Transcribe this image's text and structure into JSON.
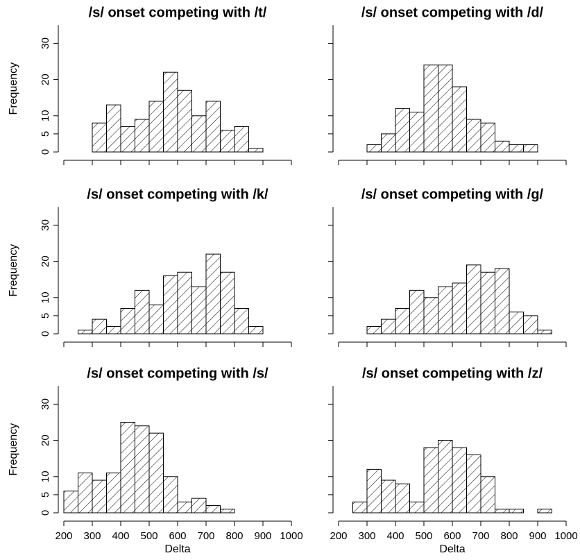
{
  "chart_data": [
    {
      "type": "bar",
      "title": "/s/ onset competing with /t/",
      "xlabel": "",
      "ylabel": "Frequency",
      "bin_width": 50,
      "bin_starts": [
        300,
        350,
        400,
        450,
        500,
        550,
        600,
        650,
        700,
        750,
        800,
        850
      ],
      "values": [
        8,
        13,
        7,
        9,
        14,
        22,
        17,
        10,
        14,
        6,
        7,
        1
      ],
      "xlim": [
        200,
        1000
      ],
      "ylim": [
        0,
        35
      ],
      "x_ticks": [],
      "y_ticks": [
        0,
        5,
        10,
        20,
        30
      ]
    },
    {
      "type": "bar",
      "title": "/s/ onset competing with /d/",
      "xlabel": "",
      "ylabel": "",
      "bin_width": 50,
      "bin_starts": [
        300,
        350,
        400,
        450,
        500,
        550,
        600,
        650,
        700,
        750,
        800,
        850
      ],
      "values": [
        2,
        5,
        12,
        11,
        24,
        24,
        18,
        9,
        8,
        3,
        2,
        2
      ],
      "xlim": [
        200,
        1000
      ],
      "ylim": [
        0,
        35
      ],
      "x_ticks": [],
      "y_ticks": []
    },
    {
      "type": "bar",
      "title": "/s/ onset competing with /k/",
      "xlabel": "",
      "ylabel": "Frequency",
      "bin_width": 50,
      "bin_starts": [
        250,
        300,
        350,
        400,
        450,
        500,
        550,
        600,
        650,
        700,
        750,
        800,
        850
      ],
      "values": [
        1,
        4,
        2,
        7,
        12,
        8,
        16,
        17,
        13,
        22,
        17,
        7,
        2
      ],
      "xlim": [
        200,
        1000
      ],
      "ylim": [
        0,
        35
      ],
      "x_ticks": [],
      "y_ticks": [
        0,
        5,
        10,
        20,
        30
      ]
    },
    {
      "type": "bar",
      "title": "/s/ onset competing with /g/",
      "xlabel": "",
      "ylabel": "",
      "bin_width": 50,
      "bin_starts": [
        300,
        350,
        400,
        450,
        500,
        550,
        600,
        650,
        700,
        750,
        800,
        850,
        900
      ],
      "values": [
        2,
        4,
        7,
        12,
        10,
        13,
        14,
        19,
        17,
        18,
        6,
        5,
        1
      ],
      "xlim": [
        200,
        1000
      ],
      "ylim": [
        0,
        35
      ],
      "x_ticks": [],
      "y_ticks": []
    },
    {
      "type": "bar",
      "title": "/s/ onset competing with /s/",
      "xlabel": "Delta",
      "ylabel": "Frequency",
      "bin_width": 50,
      "bin_starts": [
        200,
        250,
        300,
        350,
        400,
        450,
        500,
        550,
        600,
        650,
        700,
        750
      ],
      "values": [
        6,
        11,
        9,
        11,
        25,
        24,
        22,
        10,
        3,
        4,
        2,
        1
      ],
      "xlim": [
        200,
        1000
      ],
      "ylim": [
        0,
        35
      ],
      "x_ticks": [
        200,
        300,
        400,
        500,
        600,
        700,
        800,
        900,
        1000
      ],
      "y_ticks": [
        0,
        5,
        10,
        20,
        30
      ]
    },
    {
      "type": "bar",
      "title": "/s/ onset competing with /z/",
      "xlabel": "Delta",
      "ylabel": "",
      "bin_width": 50,
      "bin_starts": [
        250,
        300,
        350,
        400,
        450,
        500,
        550,
        600,
        650,
        700,
        750,
        800,
        850,
        900
      ],
      "values": [
        3,
        12,
        9,
        8,
        3,
        18,
        20,
        18,
        16,
        10,
        1,
        1,
        0,
        1
      ],
      "xlim": [
        200,
        1000
      ],
      "ylim": [
        0,
        35
      ],
      "x_ticks": [
        200,
        300,
        400,
        500,
        600,
        700,
        800,
        900,
        1000
      ],
      "y_ticks": []
    }
  ]
}
